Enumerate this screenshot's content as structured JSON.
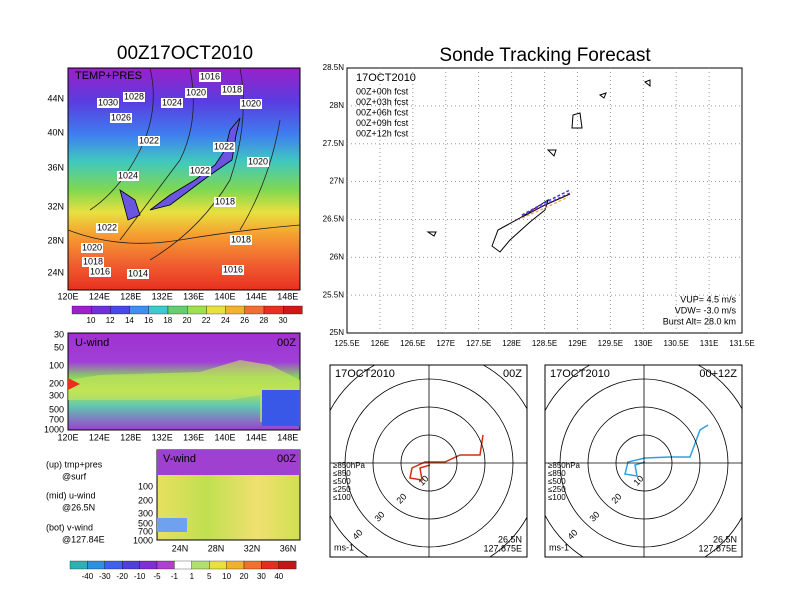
{
  "left": {
    "title": "00Z17OCT2010",
    "surface": {
      "label": "TEMP+PRES",
      "lat_labels": [
        "44N",
        "40N",
        "36N",
        "32N",
        "28N",
        "24N"
      ],
      "lon_labels": [
        "120E",
        "124E",
        "128E",
        "132E",
        "136E",
        "140E",
        "144E",
        "148E"
      ],
      "isobars": [
        "1016",
        "1018",
        "1020",
        "1028",
        "1024",
        "1030",
        "1026",
        "1020",
        "1022",
        "1022",
        "1024",
        "1020",
        "1022",
        "1018",
        "1022",
        "1020",
        "1018",
        "1018",
        "1016",
        "1014",
        "1016"
      ]
    },
    "temp_colorbar": [
      "10",
      "12",
      "14",
      "16",
      "18",
      "20",
      "22",
      "24",
      "26",
      "28",
      "30"
    ],
    "uwind": {
      "label": "U-wind",
      "time": "00Z",
      "levels": [
        "30",
        "50",
        "100",
        "200",
        "300",
        "500",
        "700",
        "1000"
      ],
      "lon_labels": [
        "120E",
        "124E",
        "128E",
        "132E",
        "136E",
        "140E",
        "144E",
        "148E"
      ]
    },
    "notes": [
      "(up) tmp+pres",
      "@surf",
      "(mid) u-wind",
      "@26.5N",
      "(bot) v-wind",
      "@127.84E"
    ],
    "vwind": {
      "label": "V-wind",
      "time": "00Z",
      "levels": [
        "100",
        "200",
        "300",
        "500",
        "700",
        "1000"
      ],
      "lat_labels": [
        "24N",
        "28N",
        "32N",
        "36N"
      ]
    },
    "wind_colorbar": [
      "-40",
      "-30",
      "-20",
      "-10",
      "-5",
      "-1",
      "1",
      "5",
      "10",
      "20",
      "30",
      "40"
    ]
  },
  "right": {
    "title": "Sonde Tracking Forecast",
    "track": {
      "lat_labels": [
        "28.5N",
        "28N",
        "27.5N",
        "27N",
        "26.5N",
        "26N",
        "25.5N",
        "25N"
      ],
      "lon_labels": [
        "125.5E",
        "126E",
        "126.5E",
        "127E",
        "127.5E",
        "128E",
        "128.5E",
        "129E",
        "129.5E",
        "130E",
        "130.5E",
        "131E",
        "131.5E"
      ],
      "date": "17OCT2010",
      "legend": [
        "00Z+00h fcst",
        "00Z+03h fcst",
        "00Z+06h fcst",
        "00Z+09h fcst",
        "00Z+12h fcst"
      ],
      "params": [
        "VUP= 4.5 m/s",
        "VDW= -3.0 m/s",
        "Burst Alt= 28.0 km"
      ]
    },
    "hodographs": [
      {
        "date": "17OCT2010",
        "time": "00Z"
      },
      {
        "date": "17OCT2010",
        "time": "00+12Z"
      }
    ],
    "hodo_legend": [
      "≥850hPa",
      "≤850",
      "≤500",
      "≤250",
      "≤100"
    ],
    "rings": [
      "10",
      "20",
      "30",
      "40"
    ],
    "unit": "ms-1",
    "lat": "26.5N",
    "lon": "127.875E"
  }
}
